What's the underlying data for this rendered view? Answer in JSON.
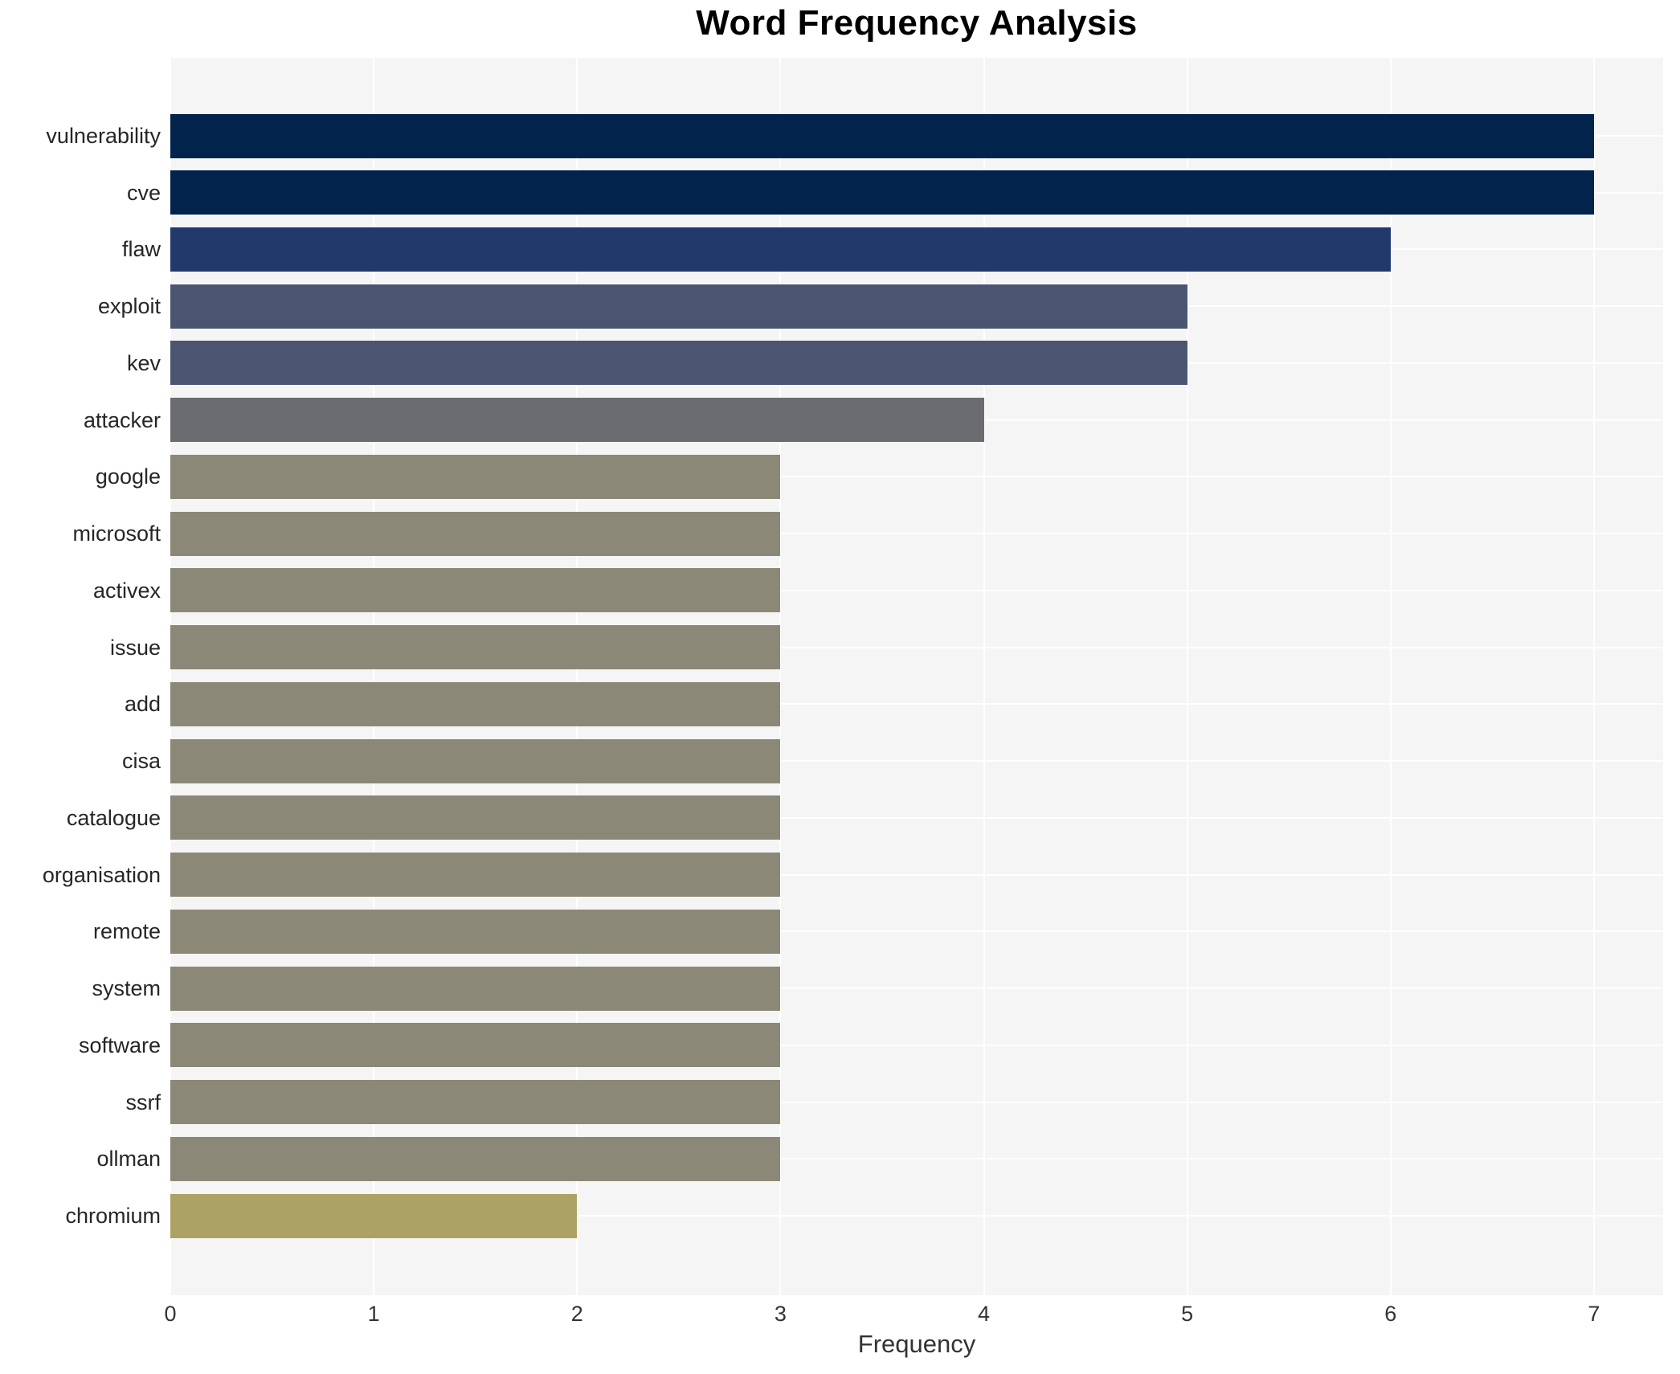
{
  "chart_data": {
    "type": "bar",
    "orientation": "horizontal",
    "title": "Word Frequency Analysis",
    "xlabel": "Frequency",
    "ylabel": "",
    "categories": [
      "vulnerability",
      "cve",
      "flaw",
      "exploit",
      "kev",
      "attacker",
      "google",
      "microsoft",
      "activex",
      "issue",
      "add",
      "cisa",
      "catalogue",
      "organisation",
      "remote",
      "system",
      "software",
      "ssrf",
      "ollman",
      "chromium"
    ],
    "values": [
      7,
      7,
      6,
      5,
      5,
      4,
      3,
      3,
      3,
      3,
      3,
      3,
      3,
      3,
      3,
      3,
      3,
      3,
      3,
      2
    ],
    "bar_colors": [
      "#02234c",
      "#02234c",
      "#21396b",
      "#4b5571",
      "#4b5571",
      "#6b6c70",
      "#8c8877",
      "#8c8877",
      "#8c8877",
      "#8c8877",
      "#8c8877",
      "#8c8877",
      "#8c8877",
      "#8c8877",
      "#8c8877",
      "#8c8877",
      "#8c8877",
      "#8c8877",
      "#8c8877",
      "#aca263"
    ],
    "x_ticks": [
      0,
      1,
      2,
      3,
      4,
      5,
      6,
      7
    ],
    "xlim": [
      0,
      7.34
    ],
    "grid": true,
    "legend": "none",
    "plot_background": "#f5f5f6",
    "gridline_color": "#ffffff"
  }
}
